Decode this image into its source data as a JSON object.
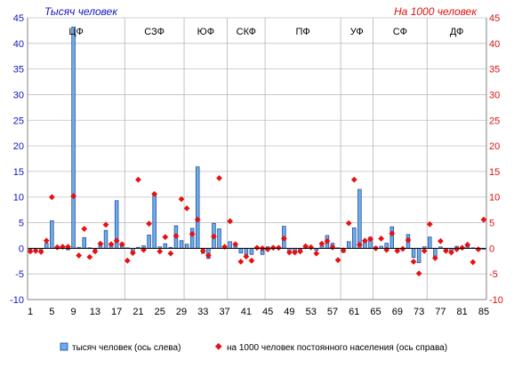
{
  "chart_data": {
    "type": "bar",
    "title_left": "Тысяч человек",
    "title_right": "На 1000 человек",
    "x_ticks": [
      "1",
      "5",
      "9",
      "13",
      "17",
      "21",
      "25",
      "29",
      "33",
      "37",
      "41",
      "45",
      "49",
      "53",
      "57",
      "61",
      "65",
      "69",
      "73",
      "77",
      "81",
      "85"
    ],
    "ylim_left": [
      -10,
      45
    ],
    "ylim_right": [
      -10,
      45
    ],
    "y_ticks": [
      -10,
      -5,
      0,
      5,
      10,
      15,
      20,
      25,
      30,
      35,
      40,
      45
    ],
    "grid": "horizontal",
    "legend_position": "bottom",
    "district_labels": [
      "ЦФ",
      "СЗФ",
      "ЮФ",
      "СКФ",
      "ПФ",
      "УФ",
      "СФ",
      "ДФ"
    ],
    "x": [
      1,
      2,
      3,
      4,
      5,
      6,
      7,
      8,
      9,
      10,
      11,
      12,
      13,
      14,
      15,
      16,
      17,
      18,
      19,
      20,
      21,
      22,
      23,
      24,
      25,
      26,
      27,
      28,
      29,
      30,
      31,
      32,
      33,
      34,
      35,
      36,
      37,
      38,
      39,
      40,
      41,
      42,
      43,
      44,
      45,
      46,
      47,
      48,
      49,
      50,
      51,
      52,
      53,
      54,
      55,
      56,
      57,
      58,
      59,
      60,
      61,
      62,
      63,
      64,
      65,
      66,
      67,
      68,
      69,
      70,
      71,
      72,
      73,
      74,
      75,
      76,
      77,
      78,
      79,
      80,
      81,
      82,
      83,
      84,
      85
    ],
    "series": [
      {
        "name": "тысяч человек (ось слева)",
        "axis": "left",
        "kind": "bar",
        "color": "#6BAEEA",
        "values": [
          -0.3,
          -0.2,
          -0.5,
          1.0,
          5.4,
          0.4,
          0.3,
          -0.3,
          43.2,
          0.2,
          2.1,
          0.1,
          -0.4,
          0.6,
          3.5,
          0.8,
          9.3,
          0.5,
          0.1,
          -0.8,
          0.2,
          0.5,
          2.6,
          10.3,
          0.3,
          0.9,
          0.2,
          4.4,
          1.5,
          0.8,
          3.9,
          15.9,
          -1.0,
          -2.0,
          4.9,
          3.8,
          0.1,
          1.3,
          0.8,
          -0.9,
          -1.2,
          -1.2,
          0.3,
          -1.2,
          0.3,
          0.4,
          0.3,
          4.3,
          -0.6,
          -0.8,
          -0.6,
          0.4,
          0.2,
          -0.4,
          0.5,
          2.5,
          1.0,
          0.1,
          -0.8,
          1.3,
          4.0,
          11.5,
          1.5,
          2.2,
          0.3,
          0.4,
          1.0,
          4.2,
          -0.4,
          -0.2,
          2.7,
          -1.8,
          -2.8,
          0.3,
          2.2,
          -1.6,
          0.3,
          -0.6,
          -0.8,
          0.4,
          0.3,
          0.5,
          0.1,
          -0.3,
          -0.2
        ]
      },
      {
        "name": "на 1000 человек постоянного населения (ось справа)",
        "axis": "right",
        "kind": "marker",
        "color": "#E81010",
        "values": [
          -0.6,
          -0.5,
          -0.7,
          1.5,
          10.0,
          0.2,
          0.3,
          0.3,
          10.2,
          -1.4,
          3.8,
          -1.7,
          -0.6,
          0.9,
          4.6,
          0.8,
          1.5,
          0.8,
          -2.4,
          -0.9,
          13.4,
          -0.3,
          4.8,
          10.6,
          -0.6,
          2.2,
          -1.0,
          2.4,
          9.6,
          7.8,
          2.8,
          5.6,
          -0.5,
          -1.4,
          2.3,
          13.7,
          0.3,
          5.3,
          0.8,
          -2.6,
          -1.6,
          -2.4,
          0.1,
          0.0,
          -0.2,
          0.1,
          0.1,
          1.9,
          -0.8,
          -0.8,
          -0.6,
          0.4,
          0.2,
          -1.0,
          0.9,
          1.4,
          0.2,
          -2.3,
          -0.4,
          4.9,
          13.4,
          0.7,
          1.5,
          1.8,
          0.0,
          1.9,
          -0.3,
          2.9,
          -0.5,
          -0.1,
          1.6,
          -2.6,
          -4.9,
          -0.5,
          4.7,
          -1.9,
          1.4,
          -0.5,
          -0.8,
          -0.2,
          0.1,
          0.7,
          -2.7,
          -0.2,
          5.6
        ]
      }
    ]
  }
}
